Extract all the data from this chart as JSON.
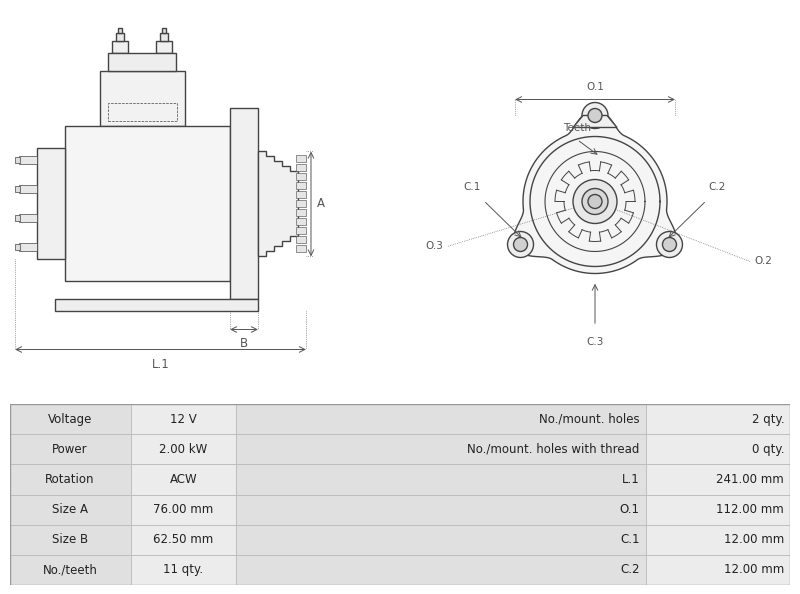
{
  "table_data": {
    "left_col1": [
      "Voltage",
      "Power",
      "Rotation",
      "Size A",
      "Size B",
      "No./teeth"
    ],
    "left_col2": [
      "12 V",
      "2.00 kW",
      "ACW",
      "76.00 mm",
      "62.50 mm",
      "11 qty."
    ],
    "right_col1": [
      "No./mount. holes",
      "No./mount. holes with thread",
      "L.1",
      "O.1",
      "C.1",
      "C.2"
    ],
    "right_col2": [
      "2 qty.",
      "0 qty.",
      "241.00 mm",
      "112.00 mm",
      "12.00 mm",
      "12.00 mm"
    ]
  },
  "bg_color": "#ffffff",
  "table_row_bg1": "#e0e0e0",
  "table_row_bg2": "#ececec",
  "table_border_color": "#bbbbbb",
  "drawing_color": "#444444",
  "dim_color": "#555555",
  "font_size_table": 8.5,
  "font_size_label": 7.5
}
